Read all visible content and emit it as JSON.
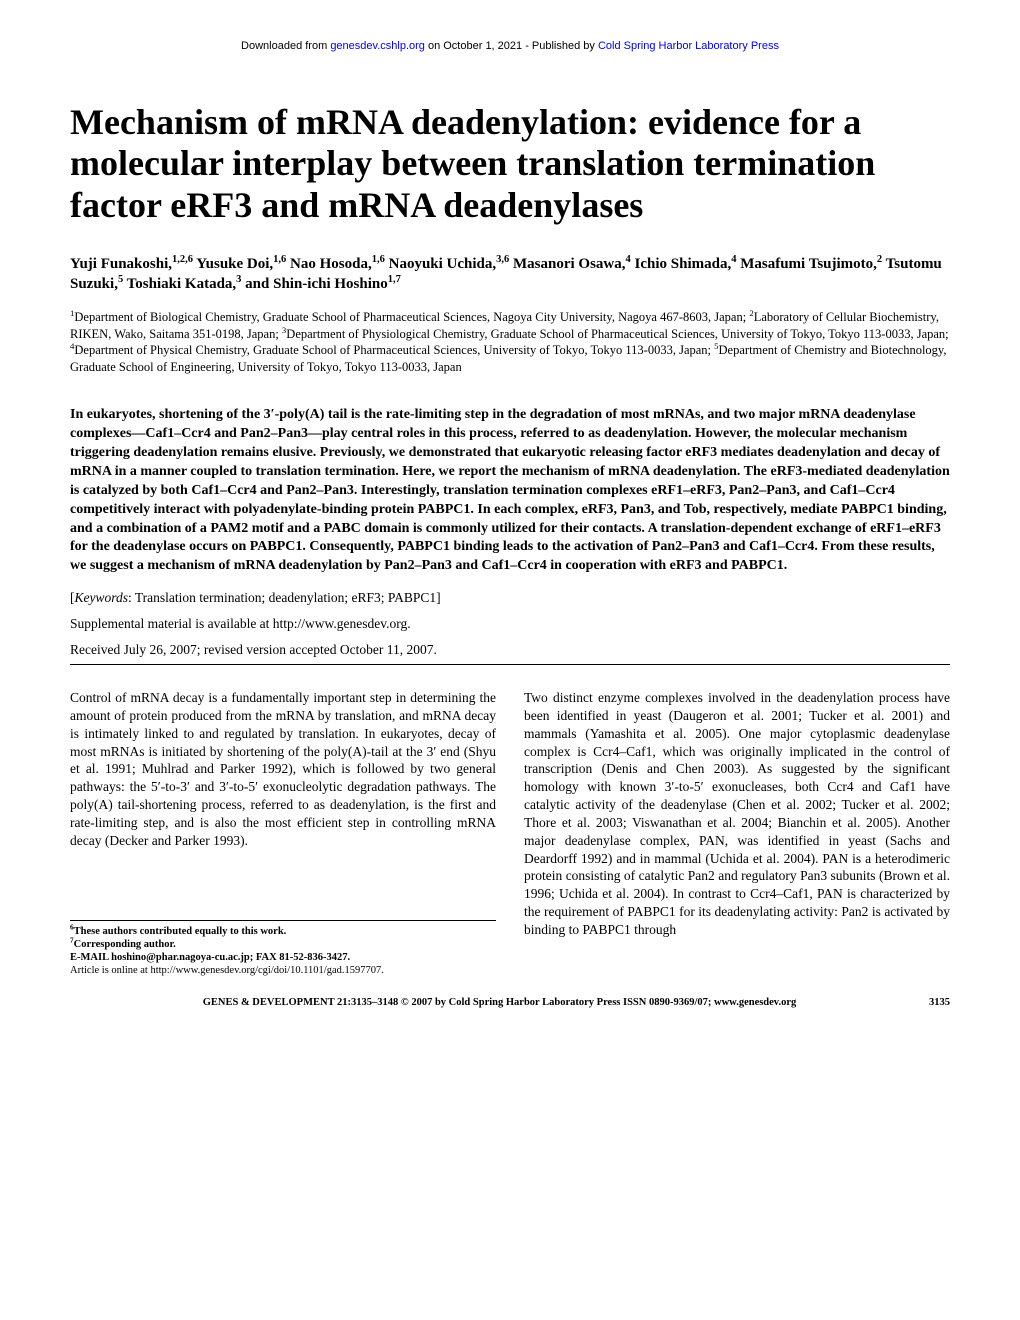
{
  "download_line": {
    "prefix": "Downloaded from ",
    "link1_text": "genesdev.cshlp.org",
    "mid": " on October 1, 2021 - Published by ",
    "link2_text": "Cold Spring Harbor Laboratory Press"
  },
  "title": "Mechanism of mRNA deadenylation: evidence for a molecular interplay between translation termination factor eRF3 and mRNA deadenylases",
  "authors_html": "Yuji Funakoshi,<sup>1,2,6</sup> Yusuke Doi,<sup>1,6</sup> Nao Hosoda,<sup>1,6</sup> Naoyuki Uchida,<sup>3,6</sup> Masanori Osawa,<sup>4</sup> Ichio Shimada,<sup>4</sup> Masafumi Tsujimoto,<sup>2</sup> Tsutomu Suzuki,<sup>5</sup> Toshiaki Katada,<sup>3</sup> and Shin-ichi Hoshino<sup>1,7</sup>",
  "affiliations_html": "<sup>1</sup>Department of Biological Chemistry, Graduate School of Pharmaceutical Sciences, Nagoya City University, Nagoya 467-8603, Japan; <sup>2</sup>Laboratory of Cellular Biochemistry, RIKEN, Wako, Saitama 351-0198, Japan; <sup>3</sup>Department of Physiological Chemistry, Graduate School of Pharmaceutical Sciences, University of Tokyo, Tokyo 113-0033, Japan; <sup>4</sup>Department of Physical Chemistry, Graduate School of Pharmaceutical Sciences, University of Tokyo, Tokyo 113-0033, Japan; <sup>5</sup>Department of Chemistry and Biotechnology, Graduate School of Engineering, University of Tokyo, Tokyo 113-0033, Japan",
  "abstract": "In eukaryotes, shortening of the 3′-poly(A) tail is the rate-limiting step in the degradation of most mRNAs, and two major mRNA deadenylase complexes—Caf1–Ccr4 and Pan2–Pan3—play central roles in this process, referred to as deadenylation. However, the molecular mechanism triggering deadenylation remains elusive. Previously, we demonstrated that eukaryotic releasing factor eRF3 mediates deadenylation and decay of mRNA in a manner coupled to translation termination. Here, we report the mechanism of mRNA deadenylation. The eRF3-mediated deadenylation is catalyzed by both Caf1–Ccr4 and Pan2–Pan3. Interestingly, translation termination complexes eRF1–eRF3, Pan2–Pan3, and Caf1–Ccr4 competitively interact with polyadenylate-binding protein PABPC1. In each complex, eRF3, Pan3, and Tob, respectively, mediate PABPC1 binding, and a combination of a PAM2 motif and a PABC domain is commonly utilized for their contacts. A translation-dependent exchange of eRF1–eRF3 for the deadenylase occurs on PABPC1. Consequently, PABPC1 binding leads to the activation of Pan2–Pan3 and Caf1–Ccr4. From these results, we suggest a mechanism of mRNA deadenylation by Pan2–Pan3 and Caf1–Ccr4 in cooperation with eRF3 and PABPC1.",
  "keywords_label": "Keywords",
  "keywords_text": ": Translation termination; deadenylation; eRF3; PABPC1]",
  "supplemental": "Supplemental material is available at http://www.genesdev.org.",
  "received": "Received July 26, 2007; revised version accepted October 11, 2007.",
  "col_left": "Control of mRNA decay is a fundamentally important step in determining the amount of protein produced from the mRNA by translation, and mRNA decay is intimately linked to and regulated by translation. In eukaryotes, decay of most mRNAs is initiated by shortening of the poly(A)-tail at the 3′ end (Shyu et al. 1991; Muhlrad and Parker 1992), which is followed by two general pathways: the 5′-to-3′ and 3′-to-5′ exonucleolytic degradation pathways. The poly(A) tail-shortening process, referred to as deadenylation, is the first and rate-limiting step, and is also the most efficient step in controlling mRNA decay (Decker and Parker 1993).",
  "col_right": "Two distinct enzyme complexes involved in the deadenylation process have been identified in yeast (Daugeron et al. 2001; Tucker et al. 2001) and mammals (Yamashita et al. 2005). One major cytoplasmic deadenylase complex is Ccr4–Caf1, which was originally implicated in the control of transcription (Denis and Chen 2003). As suggested by the significant homology with known 3′-to-5′ exonucleases, both Ccr4 and Caf1 have catalytic activity of the deadenylase (Chen et al. 2002; Tucker et al. 2002; Thore et al. 2003; Viswanathan et al. 2004; Bianchin et al. 2005). Another major deadenylase complex, PAN, was identified in yeast (Sachs and Deardorff 1992) and in mammal (Uchida et al. 2004). PAN is a heterodimeric protein consisting of catalytic Pan2 and regulatory Pan3 subunits (Brown et al. 1996; Uchida et al. 2004). In contrast to Ccr4–Caf1, PAN is characterized by the requirement of PABPC1 for its deadenylating activity: Pan2 is activated by binding to PABPC1 through",
  "footnotes": {
    "line1_html": "<sup>6</sup>These authors contributed equally to this work.",
    "line2_html": "<sup>7</sup>Corresponding author.",
    "line3": "E-MAIL hoshino@phar.nagoya-cu.ac.jp; FAX 81-52-836-3427.",
    "line4": "Article is online at http://www.genesdev.org/cgi/doi/10.1101/gad.1597707."
  },
  "footer": {
    "text": "GENES & DEVELOPMENT 21:3135–3148 © 2007 by Cold Spring Harbor Laboratory Press ISSN 0890-9369/07; www.genesdev.org",
    "page": "3135"
  }
}
